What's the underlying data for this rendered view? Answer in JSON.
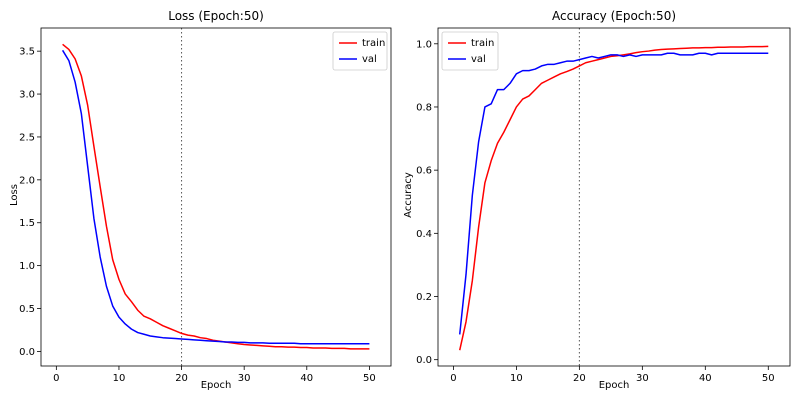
{
  "chart_data": [
    {
      "type": "line",
      "title": "Loss (Epoch:50)",
      "xlabel": "Epoch",
      "ylabel": "Loss",
      "xlim": [
        -2.45,
        53.45
      ],
      "ylim": [
        -0.17,
        3.77
      ],
      "xticks": [
        0,
        10,
        20,
        30,
        40,
        50
      ],
      "yticks": [
        0.0,
        0.5,
        1.0,
        1.5,
        2.0,
        2.5,
        3.0,
        3.5
      ],
      "xtick_labels": [
        "0",
        "10",
        "20",
        "30",
        "40",
        "50"
      ],
      "ytick_labels": [
        "0.0",
        "0.5",
        "1.0",
        "1.5",
        "2.0",
        "2.5",
        "3.0",
        "3.5"
      ],
      "vline": 20,
      "legend": "top-right",
      "grid": false,
      "x": [
        1,
        2,
        3,
        4,
        5,
        6,
        7,
        8,
        9,
        10,
        11,
        12,
        13,
        14,
        15,
        16,
        17,
        18,
        19,
        20,
        21,
        22,
        23,
        24,
        25,
        26,
        27,
        28,
        29,
        30,
        31,
        32,
        33,
        34,
        35,
        36,
        37,
        38,
        39,
        40,
        41,
        42,
        43,
        44,
        45,
        46,
        47,
        48,
        49,
        50
      ],
      "series": [
        {
          "name": "train",
          "color": "#ff0000",
          "values": [
            3.58,
            3.52,
            3.41,
            3.21,
            2.87,
            2.39,
            1.92,
            1.46,
            1.07,
            0.84,
            0.67,
            0.58,
            0.48,
            0.41,
            0.38,
            0.34,
            0.3,
            0.27,
            0.24,
            0.21,
            0.19,
            0.18,
            0.16,
            0.15,
            0.13,
            0.12,
            0.11,
            0.1,
            0.09,
            0.08,
            0.075,
            0.07,
            0.065,
            0.06,
            0.055,
            0.055,
            0.05,
            0.05,
            0.045,
            0.045,
            0.04,
            0.04,
            0.04,
            0.035,
            0.035,
            0.035,
            0.03,
            0.03,
            0.03,
            0.03
          ]
        },
        {
          "name": "val",
          "color": "#0000ff",
          "values": [
            3.51,
            3.39,
            3.14,
            2.77,
            2.16,
            1.55,
            1.1,
            0.76,
            0.53,
            0.4,
            0.32,
            0.26,
            0.22,
            0.2,
            0.18,
            0.17,
            0.16,
            0.155,
            0.15,
            0.145,
            0.14,
            0.135,
            0.13,
            0.125,
            0.12,
            0.115,
            0.11,
            0.11,
            0.105,
            0.105,
            0.1,
            0.1,
            0.1,
            0.095,
            0.095,
            0.095,
            0.095,
            0.095,
            0.09,
            0.09,
            0.09,
            0.09,
            0.09,
            0.09,
            0.09,
            0.09,
            0.09,
            0.09,
            0.09,
            0.09
          ]
        }
      ]
    },
    {
      "type": "line",
      "title": "Accuracy (Epoch:50)",
      "xlabel": "Epoch",
      "ylabel": "Accuracy",
      "xlim": [
        -2.45,
        53.45
      ],
      "ylim": [
        -0.02,
        1.05
      ],
      "xticks": [
        0,
        10,
        20,
        30,
        40,
        50
      ],
      "yticks": [
        0.0,
        0.2,
        0.4,
        0.6,
        0.8,
        1.0
      ],
      "xtick_labels": [
        "0",
        "10",
        "20",
        "30",
        "40",
        "50"
      ],
      "ytick_labels": [
        "0.0",
        "0.2",
        "0.4",
        "0.6",
        "0.8",
        "1.0"
      ],
      "vline": 20,
      "legend": "top-left",
      "grid": false,
      "x": [
        1,
        2,
        3,
        4,
        5,
        6,
        7,
        8,
        9,
        10,
        11,
        12,
        13,
        14,
        15,
        16,
        17,
        18,
        19,
        20,
        21,
        22,
        23,
        24,
        25,
        26,
        27,
        28,
        29,
        30,
        31,
        32,
        33,
        34,
        35,
        36,
        37,
        38,
        39,
        40,
        41,
        42,
        43,
        44,
        45,
        46,
        47,
        48,
        49,
        50
      ],
      "series": [
        {
          "name": "train",
          "color": "#ff0000",
          "values": [
            0.03,
            0.12,
            0.25,
            0.42,
            0.56,
            0.63,
            0.685,
            0.72,
            0.76,
            0.8,
            0.825,
            0.835,
            0.855,
            0.875,
            0.885,
            0.895,
            0.905,
            0.912,
            0.92,
            0.93,
            0.94,
            0.945,
            0.95,
            0.955,
            0.96,
            0.962,
            0.965,
            0.968,
            0.972,
            0.975,
            0.977,
            0.98,
            0.982,
            0.983,
            0.984,
            0.985,
            0.986,
            0.987,
            0.987,
            0.988,
            0.988,
            0.989,
            0.989,
            0.99,
            0.99,
            0.99,
            0.991,
            0.991,
            0.991,
            0.992
          ]
        },
        {
          "name": "val",
          "color": "#0000ff",
          "values": [
            0.08,
            0.27,
            0.52,
            0.69,
            0.8,
            0.81,
            0.855,
            0.855,
            0.875,
            0.905,
            0.915,
            0.915,
            0.92,
            0.93,
            0.935,
            0.935,
            0.94,
            0.945,
            0.945,
            0.95,
            0.955,
            0.96,
            0.955,
            0.96,
            0.965,
            0.965,
            0.96,
            0.965,
            0.96,
            0.965,
            0.965,
            0.965,
            0.965,
            0.97,
            0.97,
            0.965,
            0.965,
            0.965,
            0.97,
            0.97,
            0.965,
            0.97,
            0.97,
            0.97,
            0.97,
            0.97,
            0.97,
            0.97,
            0.97,
            0.97
          ]
        }
      ]
    }
  ]
}
